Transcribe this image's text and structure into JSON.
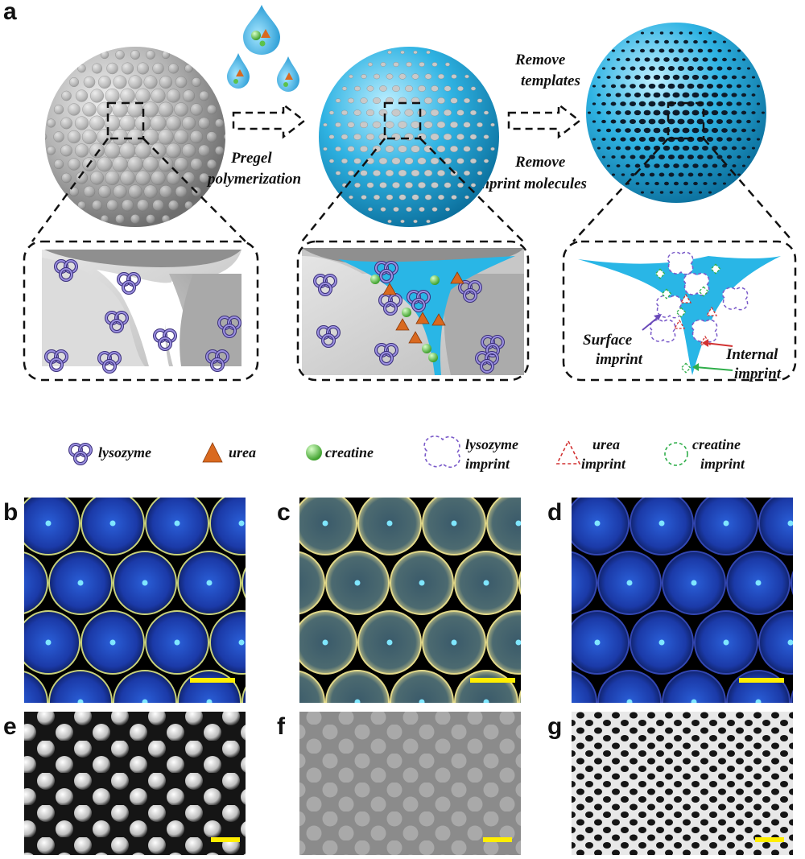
{
  "panel_labels": [
    "a",
    "b",
    "c",
    "d",
    "e",
    "f",
    "g"
  ],
  "process": {
    "step1": [
      "Pregel",
      "polymerization"
    ],
    "step2_top": [
      "Remove",
      "templates"
    ],
    "step2_bottom": [
      "Remove",
      "imprint molecules"
    ]
  },
  "callouts": {
    "surface": [
      "Surface",
      "imprint"
    ],
    "internal": [
      "Internal",
      "imprint"
    ]
  },
  "legend": [
    {
      "name": "lysozyme-legend",
      "lines": [
        "lysozyme"
      ]
    },
    {
      "name": "urea-legend",
      "lines": [
        "urea"
      ]
    },
    {
      "name": "creatine-legend",
      "lines": [
        "creatine"
      ]
    },
    {
      "name": "lysozyme-imprint-legend",
      "lines": [
        "lysozyme",
        "imprint"
      ]
    },
    {
      "name": "urea-imprint-legend",
      "lines": [
        "urea",
        "imprint"
      ]
    },
    {
      "name": "creatine-imprint-legend",
      "lines": [
        "creatine",
        "imprint"
      ]
    }
  ],
  "colors": {
    "hydrogel_blue": "#29b6e6",
    "sphere_gray": "#a8a8a8",
    "lysozyme_purple": "#8a7fd0",
    "urea_orange": "#d9691f",
    "creatine_green": "#5cc24a",
    "scale_bar_yellow": "#ffee00"
  }
}
